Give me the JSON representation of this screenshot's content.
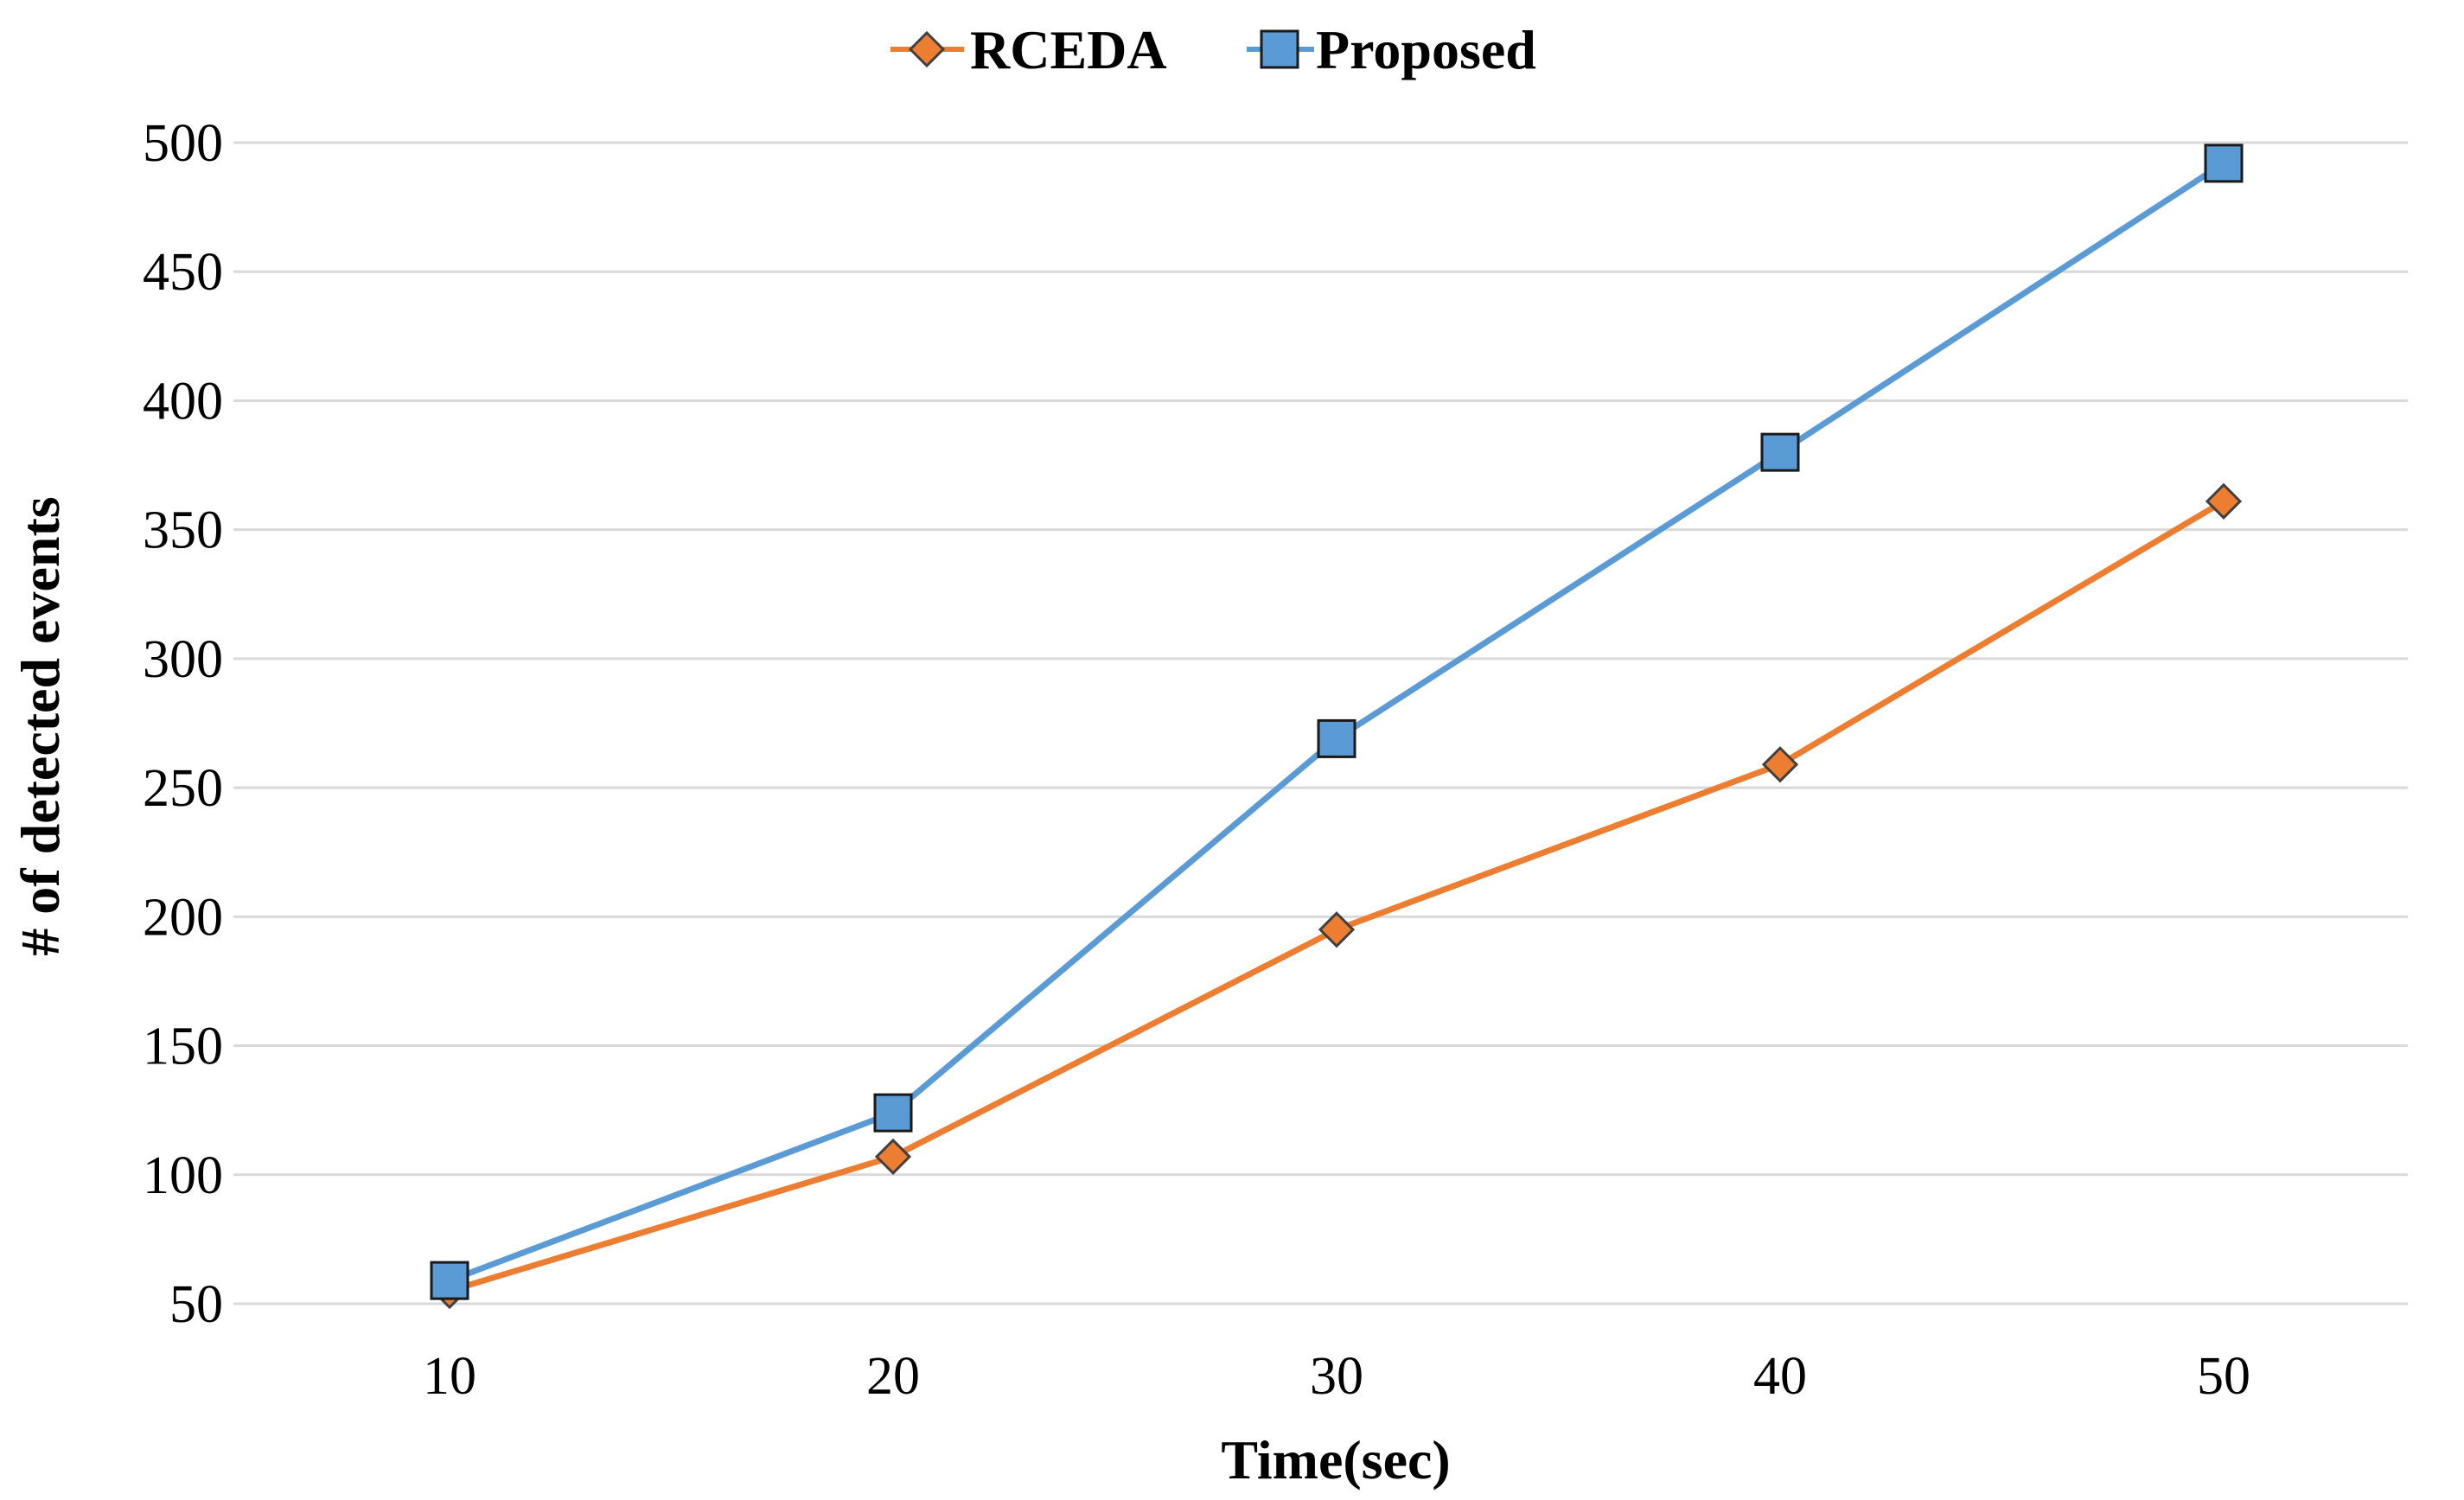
{
  "chart_data": {
    "type": "line",
    "title": "",
    "xlabel": "Time(sec)",
    "ylabel": "# of detected events",
    "x": [
      10,
      20,
      30,
      40,
      50
    ],
    "xticks": [
      "10",
      "20",
      "30",
      "40",
      "50"
    ],
    "yticks": [
      "50",
      "100",
      "150",
      "200",
      "250",
      "300",
      "350",
      "400",
      "450",
      "500"
    ],
    "ylim": [
      50,
      500
    ],
    "grid": true,
    "legend_position": "top-center",
    "series": [
      {
        "name": "RCEDA",
        "marker": "diamond",
        "color": "#ED7D31",
        "values": [
          55,
          107,
          195,
          259,
          361
        ]
      },
      {
        "name": "Proposed",
        "marker": "square",
        "color": "#5B9BD5",
        "values": [
          59,
          124,
          269,
          380,
          492
        ]
      }
    ]
  }
}
